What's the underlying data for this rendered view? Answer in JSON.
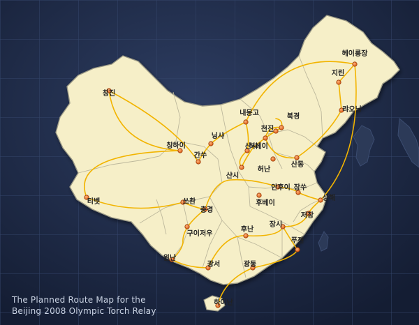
{
  "caption": {
    "line1": "The Planned Route Map for the",
    "line2": "Beijing 2008 Olympic Torch Relay"
  },
  "colors": {
    "ocean": "#1d2a45",
    "grid": "#2f3d5c",
    "land": "#f6efc8",
    "border": "#a8a48c",
    "route": "#f2b400",
    "marker": "#e8641a",
    "label": "#222222"
  },
  "places": [
    {
      "id": "heilongjiang",
      "name": "헤이룽장"
    },
    {
      "id": "jilin",
      "name": "지린"
    },
    {
      "id": "liaoning",
      "name": "랴오닝"
    },
    {
      "id": "beijing",
      "name": "북경"
    },
    {
      "id": "tianjin",
      "name": "천진"
    },
    {
      "id": "neimenggu",
      "name": "내몽고"
    },
    {
      "id": "hebei",
      "name": "허베이"
    },
    {
      "id": "shandong",
      "name": "산동"
    },
    {
      "id": "shanxi",
      "name": "산시"
    },
    {
      "id": "henan",
      "name": "허난"
    },
    {
      "id": "shaanxi",
      "name": "샨시"
    },
    {
      "id": "ningxia",
      "name": "닝샤"
    },
    {
      "id": "gansu",
      "name": "간쑤"
    },
    {
      "id": "qinghai",
      "name": "칭하이"
    },
    {
      "id": "xinjiang",
      "name": "칭진"
    },
    {
      "id": "tibet",
      "name": "티벳"
    },
    {
      "id": "sichuan",
      "name": "쓰촨"
    },
    {
      "id": "chongqing",
      "name": "충경"
    },
    {
      "id": "guizhou",
      "name": "구이저우"
    },
    {
      "id": "yunnan",
      "name": "윈난"
    },
    {
      "id": "guangxi",
      "name": "광서"
    },
    {
      "id": "guangdong",
      "name": "광동"
    },
    {
      "id": "hainan",
      "name": "하이난"
    },
    {
      "id": "hunan",
      "name": "후난"
    },
    {
      "id": "hubei",
      "name": "후베이"
    },
    {
      "id": "anhui",
      "name": "안후이"
    },
    {
      "id": "jiangsu",
      "name": "장쑤"
    },
    {
      "id": "shanghai",
      "name": "상해"
    },
    {
      "id": "zhejiang",
      "name": "저장"
    },
    {
      "id": "jiangxi",
      "name": "장시"
    },
    {
      "id": "fujian",
      "name": "푸젠"
    }
  ]
}
